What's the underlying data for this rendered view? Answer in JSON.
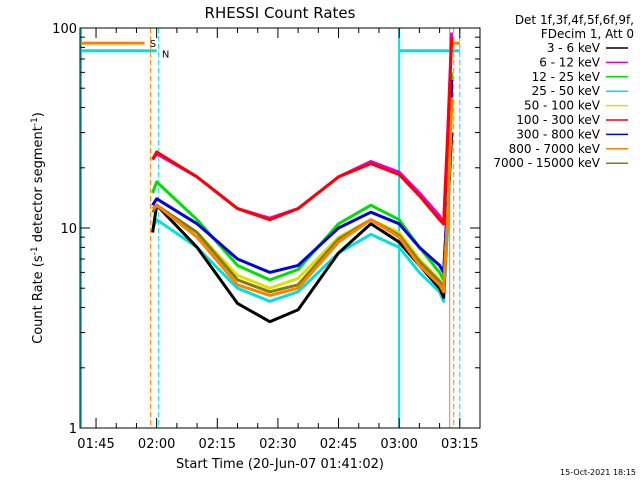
{
  "chart_data": {
    "type": "line",
    "title": "RHESSI Count Rates",
    "xlabel": "Start Time (20-Jun-07 01:41:02)",
    "ylabel": "Count Rate (s",
    "ylabel_sup": "-1",
    "ylabel_tail": " detector segment",
    "ylabel_tail_sup": "-1",
    "ylabel_close": ")",
    "y_scale": "log",
    "ylim": [
      1,
      100
    ],
    "y_ticks": [
      {
        "v": 1,
        "label": "1"
      },
      {
        "v": 10,
        "label": "10"
      },
      {
        "v": 100,
        "label": "100"
      }
    ],
    "xlim": [
      "01:41:02",
      "03:20:00"
    ],
    "x_ticks": [
      "01:45",
      "02:00",
      "02:15",
      "02:30",
      "02:45",
      "03:00",
      "03:15"
    ],
    "grid": false,
    "legend_position": "top-right",
    "legend_header": [
      "Det 1f,3f,4f,5f,6f,9f,",
      "FDecim 1, Att 0"
    ],
    "timestamp": "15-Oct-2021 18:15",
    "markers": [
      {
        "label": "S",
        "color": "#ff8000"
      },
      {
        "label": "N",
        "color": "#00e0e0"
      }
    ],
    "series": [
      {
        "name": "3 - 6 keV",
        "color": "#000000",
        "x": [
          "01:59",
          "02:00",
          "02:10",
          "02:20",
          "02:28",
          "02:35",
          "02:45",
          "02:53",
          "03:00",
          "03:05",
          "03:10",
          "03:11",
          "03:12",
          "03:13"
        ],
        "values": [
          9.5,
          13,
          8,
          4.2,
          3.4,
          3.9,
          7.5,
          10.5,
          8.5,
          6.5,
          5,
          4.5,
          12,
          30
        ]
      },
      {
        "name": "6 - 12 keV",
        "color": "#e000e0",
        "x": [
          "01:59",
          "02:00",
          "02:10",
          "02:20",
          "02:28",
          "02:35",
          "02:45",
          "02:53",
          "03:00",
          "03:05",
          "03:10",
          "03:11",
          "03:12",
          "03:13"
        ],
        "values": [
          22,
          23.5,
          18,
          12.5,
          11.2,
          12.5,
          18,
          21.5,
          19,
          15,
          11.5,
          10.5,
          30,
          95
        ]
      },
      {
        "name": "12 - 25 keV",
        "color": "#00e000",
        "x": [
          "01:59",
          "02:00",
          "02:10",
          "02:20",
          "02:28",
          "02:35",
          "02:45",
          "02:53",
          "03:00",
          "03:05",
          "03:10",
          "03:11",
          "03:12",
          "03:13"
        ],
        "values": [
          15,
          17,
          11,
          6.5,
          5.5,
          6.2,
          10.5,
          13,
          11,
          8,
          6,
          5.5,
          15,
          60
        ]
      },
      {
        "name": "25 - 50 keV",
        "color": "#00e0e0",
        "x": [
          "01:59",
          "02:00",
          "02:10",
          "02:20",
          "02:28",
          "02:35",
          "02:45",
          "02:53",
          "03:00",
          "03:05",
          "03:10",
          "03:11",
          "03:12",
          "03:13"
        ],
        "values": [
          10,
          11,
          8,
          5,
          4.3,
          4.8,
          7.5,
          9.3,
          8,
          6,
          4.8,
          4.3,
          10,
          50
        ]
      },
      {
        "name": "50 - 100 keV",
        "color": "#e0e000",
        "x": [
          "01:59",
          "02:00",
          "02:10",
          "02:20",
          "02:28",
          "02:35",
          "02:45",
          "02:53",
          "03:00",
          "03:05",
          "03:10",
          "03:11",
          "03:12",
          "03:13"
        ],
        "values": [
          12,
          13,
          9.5,
          5.8,
          5,
          5.6,
          9,
          11,
          9.5,
          7,
          5.5,
          5,
          12,
          40
        ]
      },
      {
        "name": "100 - 300 keV",
        "color": "#ff0000",
        "x": [
          "01:59",
          "02:00",
          "02:10",
          "02:20",
          "02:28",
          "02:35",
          "02:45",
          "02:53",
          "03:00",
          "03:05",
          "03:10",
          "03:11",
          "03:12",
          "03:13"
        ],
        "values": [
          22,
          24,
          18,
          12.5,
          11,
          12.5,
          18,
          21,
          18.5,
          14.5,
          11,
          10.5,
          28,
          90
        ]
      },
      {
        "name": "300 - 800 keV",
        "color": "#0000e0",
        "x": [
          "01:59",
          "02:00",
          "02:10",
          "02:20",
          "02:28",
          "02:35",
          "02:45",
          "02:53",
          "03:00",
          "03:05",
          "03:10",
          "03:11",
          "03:12",
          "03:13"
        ],
        "values": [
          13,
          14,
          10.5,
          7,
          6,
          6.5,
          10,
          12,
          10.5,
          8,
          6.5,
          6,
          14,
          55
        ]
      },
      {
        "name": "800 - 7000 keV",
        "color": "#ff8000",
        "x": [
          "01:59",
          "02:00",
          "02:10",
          "02:20",
          "02:28",
          "02:35",
          "02:45",
          "02:53",
          "03:00",
          "03:05",
          "03:10",
          "03:11",
          "03:12",
          "03:13"
        ],
        "values": [
          12.5,
          13,
          9,
          5.2,
          4.6,
          5,
          8.5,
          11,
          9,
          6.5,
          5.2,
          4.8,
          11,
          45
        ]
      },
      {
        "name": "7000 - 15000 keV",
        "color": "#808000",
        "x": [
          "01:59",
          "02:00",
          "02:10",
          "02:20",
          "02:28",
          "02:35",
          "02:45",
          "02:53",
          "03:00",
          "03:05",
          "03:10",
          "03:11",
          "03:12",
          "03:13"
        ],
        "values": [
          12,
          13,
          9.5,
          5.5,
          4.8,
          5.2,
          8.8,
          11,
          9.2,
          6.8,
          5.4,
          5,
          12,
          45
        ]
      }
    ]
  }
}
